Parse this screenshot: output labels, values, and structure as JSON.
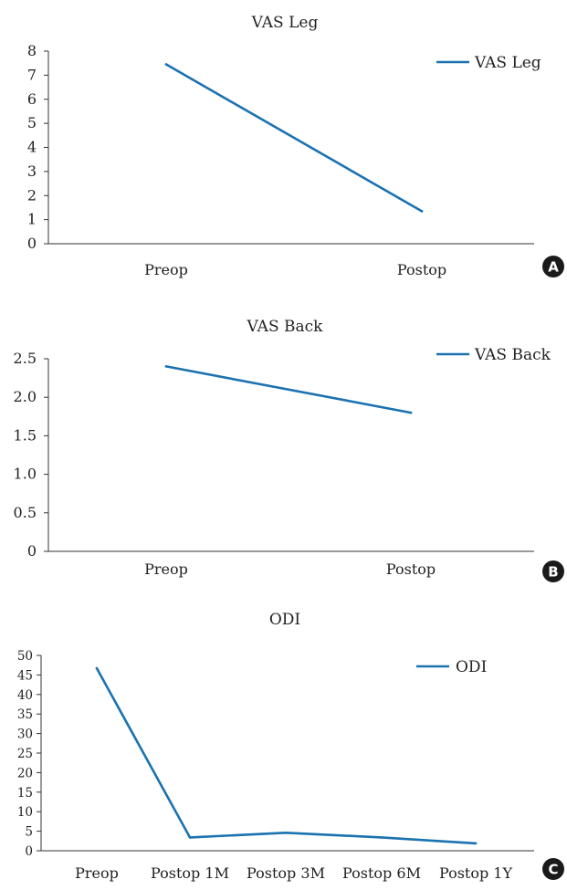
{
  "colors": {
    "series": "#1a72b0",
    "badge": "#1a1a1a"
  },
  "chart_data": [
    {
      "panel_label": "A",
      "type": "line",
      "title": "VAS Leg",
      "categories": [
        "Preop",
        "Postop"
      ],
      "series": [
        {
          "name": "VAS Leg",
          "values": [
            7.45,
            1.35
          ]
        }
      ],
      "ylim": [
        0,
        8
      ],
      "yticks": [
        "0",
        "1",
        "2",
        "3",
        "4",
        "5",
        "6",
        "7",
        "8"
      ],
      "legend": "top-right",
      "grid": false
    },
    {
      "panel_label": "B",
      "type": "line",
      "title": "VAS Back",
      "categories": [
        "Preop",
        "Postop"
      ],
      "series": [
        {
          "name": "VAS Back",
          "values": [
            2.4,
            1.8
          ]
        }
      ],
      "ylim": [
        0,
        2.5
      ],
      "yticks": [
        "0",
        "0.5",
        "1.0",
        "1.5",
        "2.0",
        "2.5"
      ],
      "legend": "top-right",
      "grid": false
    },
    {
      "panel_label": "C",
      "type": "line",
      "title": "ODI",
      "categories": [
        "Preop",
        "Postop 1M",
        "Postop 3M",
        "Postop 6M",
        "Postop 1Y"
      ],
      "series": [
        {
          "name": "ODI",
          "values": [
            46.7,
            3.4,
            4.6,
            3.4,
            1.9
          ]
        }
      ],
      "ylim": [
        0,
        50
      ],
      "yticks": [
        "0",
        "5",
        "10",
        "15",
        "20",
        "25",
        "30",
        "35",
        "40",
        "45",
        "50"
      ],
      "legend": "top-right",
      "grid": false
    }
  ]
}
